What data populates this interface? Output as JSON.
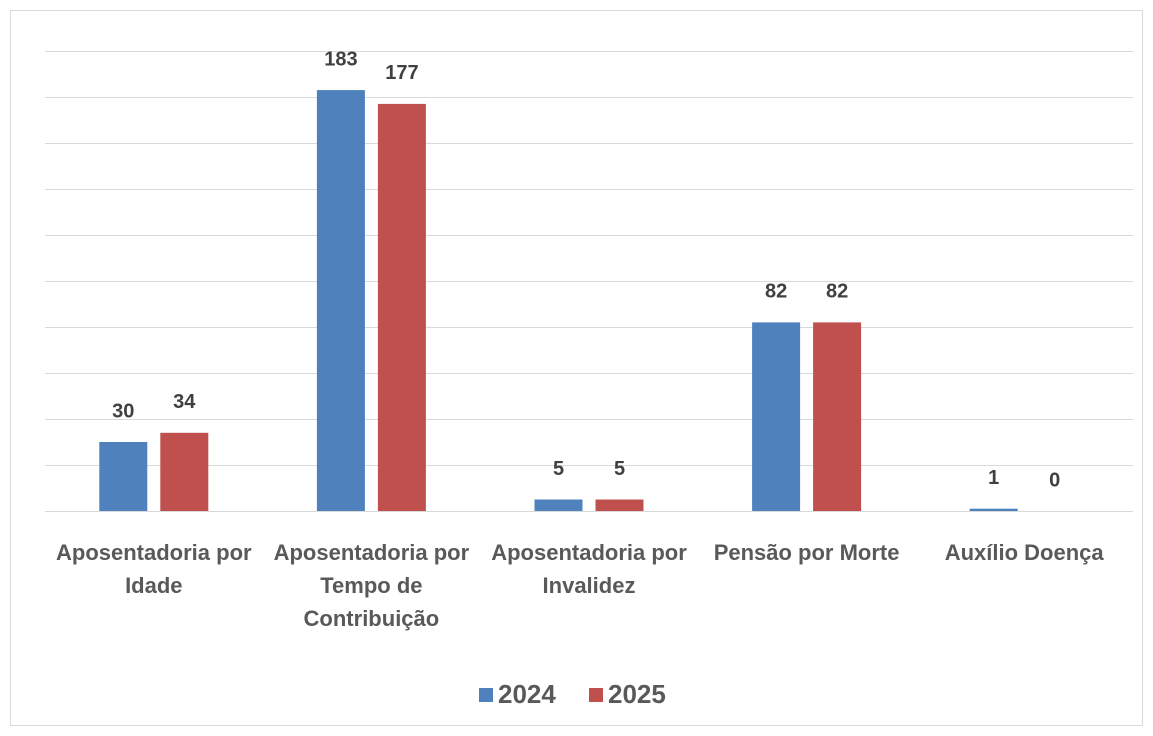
{
  "chart_data": {
    "type": "bar",
    "categories": [
      "Aposentadoria por Idade",
      "Aposentadoria por Tempo de Contribuição",
      "Aposentadoria por Invalidez",
      "Pensão por Morte",
      "Auxílio Doença"
    ],
    "series": [
      {
        "name": "2024",
        "color": "#4f81bd",
        "values": [
          30,
          183,
          5,
          82,
          1
        ]
      },
      {
        "name": "2025",
        "color": "#c0504d",
        "values": [
          34,
          177,
          5,
          82,
          0
        ]
      }
    ],
    "ylim": [
      0,
      200
    ],
    "yticks": [
      0,
      20,
      40,
      60,
      80,
      100,
      120,
      140,
      160,
      180,
      200
    ],
    "grid": true,
    "legend": "bottom"
  }
}
